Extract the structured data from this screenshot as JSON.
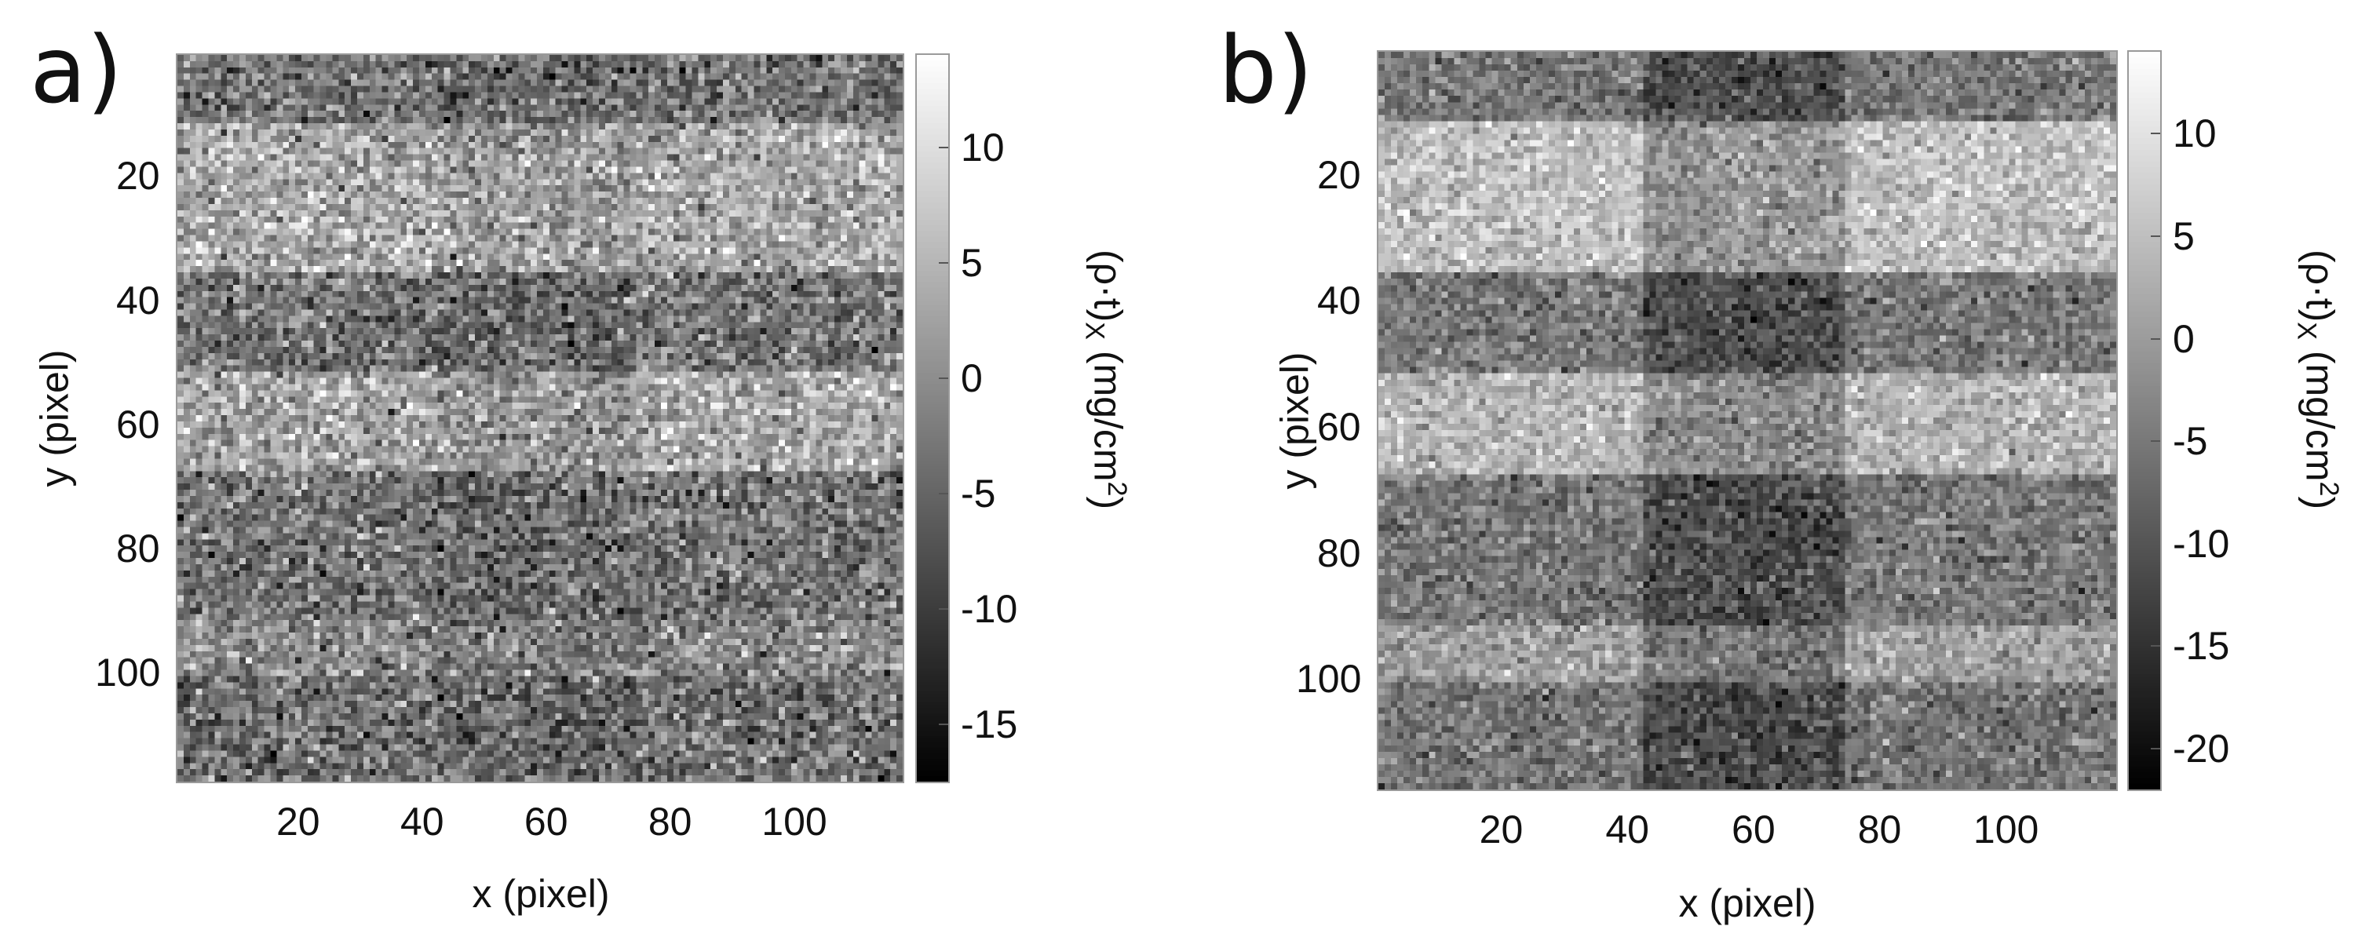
{
  "chart_data": [
    {
      "type": "heatmap",
      "panel_label": "a)",
      "xlabel": "x (pixel)",
      "ylabel": "y (pixel)",
      "colorbar_label_main": "(ρ·t)",
      "colorbar_label_sub": "X",
      "colorbar_label_unit": " (mg/cm",
      "colorbar_label_sup": "2",
      "colorbar_label_end": ")",
      "colormap": "gray",
      "xlim": [
        0.5,
        117.5
      ],
      "ylim": [
        0.5,
        117.5
      ],
      "xticks": [
        20,
        40,
        60,
        80,
        100
      ],
      "yticks": [
        20,
        40,
        60,
        80,
        100
      ],
      "clim": [
        -17.5,
        14
      ],
      "cbar_ticks": [
        10,
        5,
        0,
        -5,
        -10,
        -15
      ],
      "row_bands": [
        {
          "y_start": 1,
          "y_end": 11,
          "mean": -3
        },
        {
          "y_start": 12,
          "y_end": 35,
          "mean": 3.5
        },
        {
          "y_start": 36,
          "y_end": 51,
          "mean": -3
        },
        {
          "y_start": 52,
          "y_end": 67,
          "mean": 3
        },
        {
          "y_start": 68,
          "y_end": 91,
          "mean": -3
        },
        {
          "y_start": 92,
          "y_end": 100,
          "mean": -0.5
        },
        {
          "y_start": 101,
          "y_end": 117,
          "mean": -3.5
        }
      ],
      "column_bands": [
        {
          "x_start": 1,
          "x_end": 42,
          "offset": 0
        },
        {
          "x_start": 43,
          "x_end": 74,
          "offset": -1.5
        },
        {
          "x_start": 75,
          "x_end": 117,
          "offset": 0
        }
      ],
      "noise_sd": 4.5
    },
    {
      "type": "heatmap",
      "panel_label": "b)",
      "xlabel": "x (pixel)",
      "ylabel": "y (pixel)",
      "colorbar_label_main": "(ρ·t)",
      "colorbar_label_sub": "X",
      "colorbar_label_unit": " (mg/cm",
      "colorbar_label_sup": "2",
      "colorbar_label_end": ")",
      "colormap": "gray",
      "xlim": [
        0.5,
        117.5
      ],
      "ylim": [
        0.5,
        117.5
      ],
      "xticks": [
        20,
        40,
        60,
        80,
        100
      ],
      "yticks": [
        20,
        40,
        60,
        80,
        100
      ],
      "clim": [
        -22,
        14
      ],
      "cbar_ticks": [
        10,
        5,
        0,
        -5,
        -10,
        -15,
        -20
      ],
      "row_bands": [
        {
          "y_start": 1,
          "y_end": 11,
          "mean": -5
        },
        {
          "y_start": 12,
          "y_end": 35,
          "mean": 5
        },
        {
          "y_start": 36,
          "y_end": 51,
          "mean": -5
        },
        {
          "y_start": 52,
          "y_end": 67,
          "mean": 3.5
        },
        {
          "y_start": 68,
          "y_end": 91,
          "mean": -5
        },
        {
          "y_start": 92,
          "y_end": 100,
          "mean": 0.5
        },
        {
          "y_start": 101,
          "y_end": 117,
          "mean": -5.5
        }
      ],
      "column_bands": [
        {
          "x_start": 1,
          "x_end": 42,
          "offset": 0
        },
        {
          "x_start": 43,
          "x_end": 74,
          "offset": -6
        },
        {
          "x_start": 75,
          "x_end": 117,
          "offset": 0
        }
      ],
      "noise_sd": 3.5
    }
  ]
}
